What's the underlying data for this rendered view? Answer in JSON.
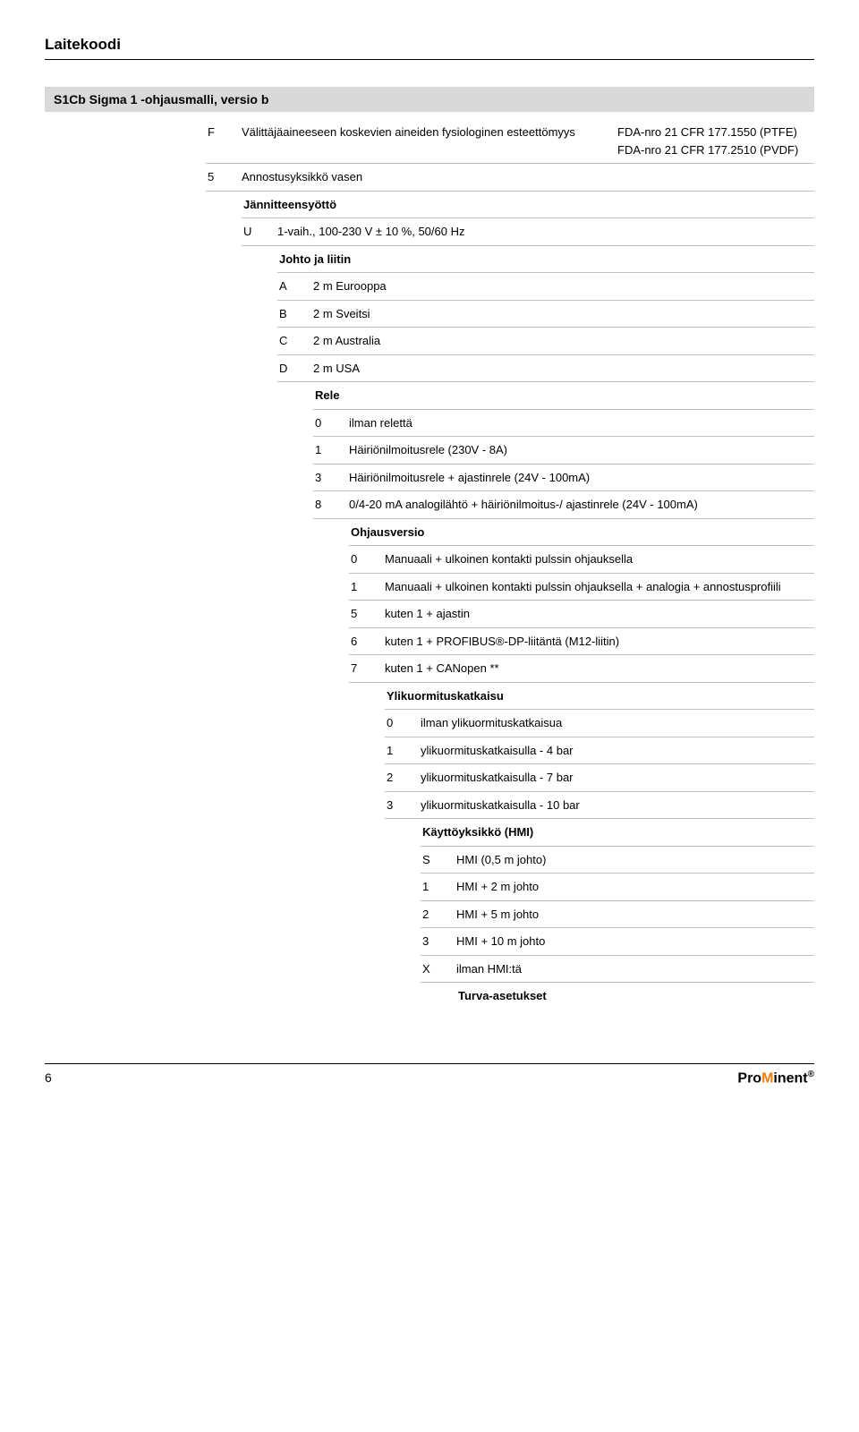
{
  "page_title": "Laitekoodi",
  "section_title": "S1Cb Sigma 1 -ohjausmalli, versio b",
  "row_f": {
    "key": "F",
    "val": "Välittäjäaineeseen koskevien aineiden fysiologinen esteettömyys",
    "col2a": "FDA-nro 21 CFR 177.1550 (PTFE)",
    "col2b": "FDA-nro 21 CFR 177.2510 (PVDF)"
  },
  "row_5": {
    "key": "5",
    "val": "Annostusyksikkö vasen"
  },
  "group_jv": "Jännitteensyöttö",
  "row_u": {
    "key": "U",
    "val": "1-vaih., 100-230 V ± 10 %, 50/60 Hz"
  },
  "group_johto": "Johto ja liitin",
  "johto_rows": [
    {
      "key": "A",
      "val": "2 m Eurooppa"
    },
    {
      "key": "B",
      "val": "2 m Sveitsi"
    },
    {
      "key": "C",
      "val": "2 m Australia"
    },
    {
      "key": "D",
      "val": "2 m USA"
    }
  ],
  "group_rele": "Rele",
  "rele_rows": [
    {
      "key": "0",
      "val": "ilman relettä"
    },
    {
      "key": "1",
      "val": "Häiriönilmoitusrele (230V - 8A)"
    },
    {
      "key": "3",
      "val": "Häiriönilmoitusrele + ajastinrele (24V - 100mA)"
    },
    {
      "key": "8",
      "val": "0/4-20 mA analogilähtö + häiriönilmoitus-/ ajastinrele (24V - 100mA)"
    }
  ],
  "group_ohjaus": "Ohjausversio",
  "ohjaus_rows": [
    {
      "key": "0",
      "val": "Manuaali + ulkoinen kontakti pulssin ohjauksella"
    },
    {
      "key": "1",
      "val": "Manuaali + ulkoinen kontakti pulssin ohjauksella + analogia + annostusprofiili"
    },
    {
      "key": "5",
      "val": "kuten 1 + ajastin"
    },
    {
      "key": "6",
      "val": "kuten 1 + PROFIBUS®-DP-liitäntä (M12-liitin)"
    },
    {
      "key": "7",
      "val": "kuten 1 + CANopen **"
    }
  ],
  "group_ylik": "Ylikuormituskatkaisu",
  "ylik_rows": [
    {
      "key": "0",
      "val": "ilman ylikuormituskatkaisua"
    },
    {
      "key": "1",
      "val": "ylikuormituskatkaisulla - 4 bar"
    },
    {
      "key": "2",
      "val": "ylikuormituskatkaisulla - 7 bar"
    },
    {
      "key": "3",
      "val": "ylikuormituskatkaisulla - 10 bar"
    }
  ],
  "group_hmi": "Käyttöyksikkö (HMI)",
  "hmi_rows": [
    {
      "key": "S",
      "val": "HMI (0,5 m johto)"
    },
    {
      "key": "1",
      "val": "HMI + 2 m johto"
    },
    {
      "key": "2",
      "val": "HMI + 5 m johto"
    },
    {
      "key": "3",
      "val": "HMI + 10 m johto"
    },
    {
      "key": "X",
      "val": "ilman HMI:tä"
    }
  ],
  "group_turva": "Turva-asetukset",
  "page_number": "6",
  "brand_pre": "Pro",
  "brand_mid": "M",
  "brand_post": "inent",
  "brand_reg": "®",
  "colors": {
    "band_bg": "#d9d9d9",
    "border": "#bfbfbf",
    "text": "#000000",
    "accent": "#f57c00",
    "bg": "#ffffff"
  },
  "fonts": {
    "body": 13,
    "title": 17,
    "band": 14
  }
}
